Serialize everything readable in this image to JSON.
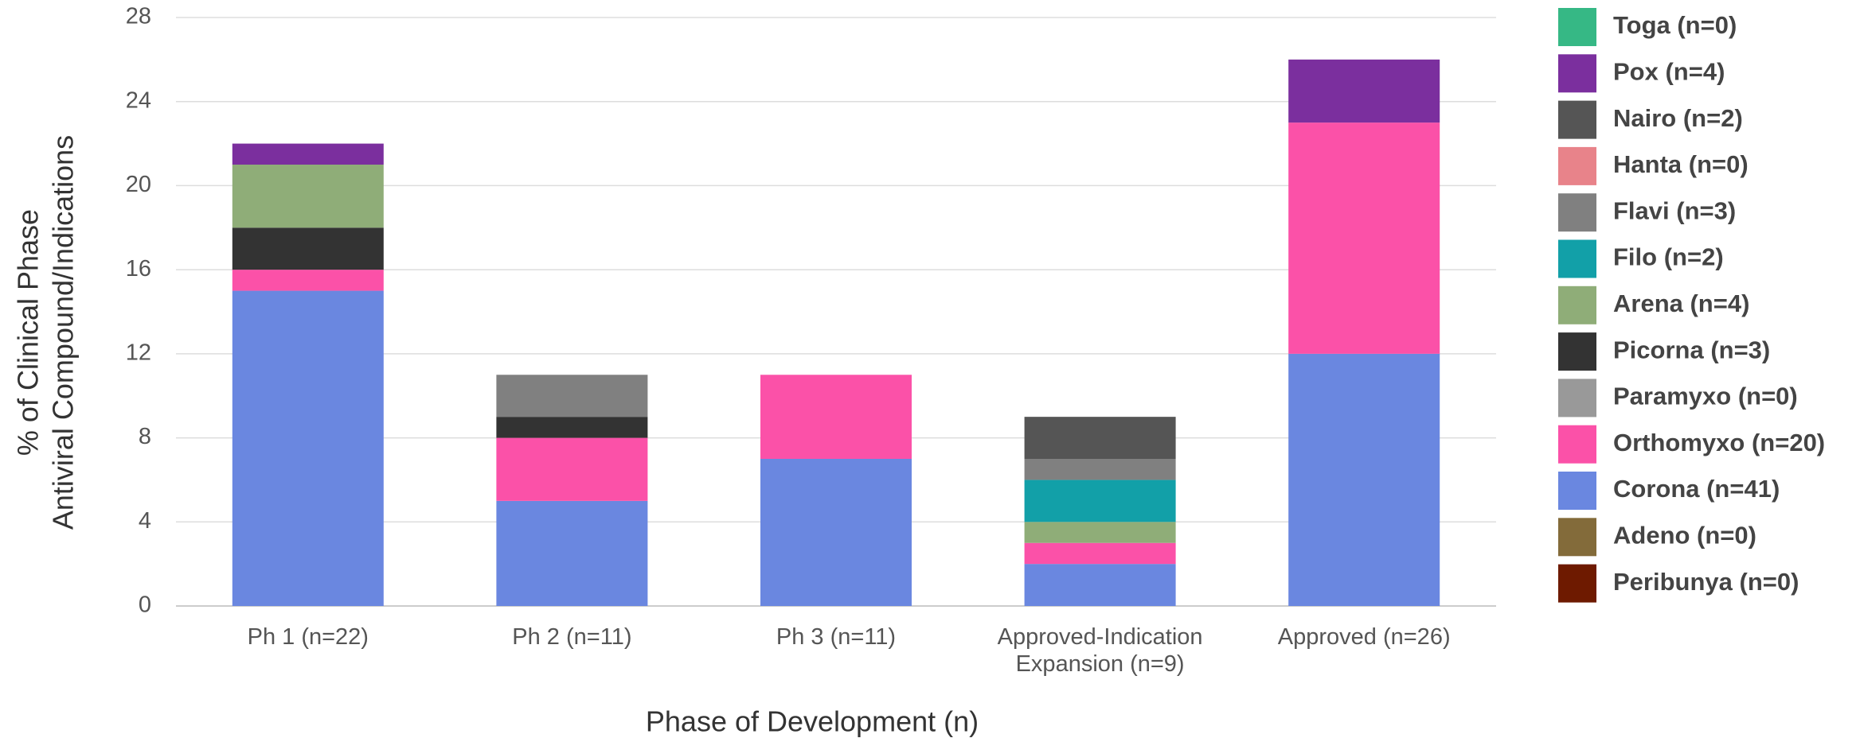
{
  "chart_data": {
    "type": "stacked_bar",
    "categories": [
      "Ph 1 (n=22)",
      "Ph 2 (n=11)",
      "Ph 3 (n=11)",
      "Approved-Indication Expansion (n=9)",
      "Approved (n=26)"
    ],
    "xlabel": "Phase of Development (n)",
    "ylabel": [
      "% of Clinical Phase",
      "Antiviral Compound/Indications"
    ],
    "ylim": [
      0,
      28
    ],
    "yticks": [
      0,
      4,
      8,
      12,
      16,
      20,
      24,
      28
    ],
    "grid": true,
    "series": [
      {
        "name": "Peribunya (n=0)",
        "color": "#6e1a00",
        "values": [
          0,
          0,
          0,
          0,
          0
        ]
      },
      {
        "name": "Adeno (n=0)",
        "color": "#836b3a",
        "values": [
          0,
          0,
          0,
          0,
          0
        ]
      },
      {
        "name": "Corona (n=41)",
        "color": "#6a87e0",
        "values": [
          15,
          5,
          7,
          2,
          12
        ]
      },
      {
        "name": "Orthomyxo (n=20)",
        "color": "#fb51a8",
        "values": [
          1,
          3,
          4,
          1,
          11
        ]
      },
      {
        "name": "Paramyxo (n=0)",
        "color": "#999999",
        "values": [
          0,
          0,
          0,
          0,
          0
        ]
      },
      {
        "name": "Picorna (n=3)",
        "color": "#333333",
        "values": [
          2,
          1,
          0,
          0,
          0
        ]
      },
      {
        "name": "Arena (n=4)",
        "color": "#8fad78",
        "values": [
          3,
          0,
          0,
          1,
          0
        ]
      },
      {
        "name": "Filo (n=2)",
        "color": "#12a0a8",
        "values": [
          0,
          0,
          0,
          2,
          0
        ]
      },
      {
        "name": "Flavi (n=3)",
        "color": "#808080",
        "values": [
          0,
          2,
          0,
          1,
          0
        ]
      },
      {
        "name": "Hanta (n=0)",
        "color": "#e8838a",
        "values": [
          0,
          0,
          0,
          0,
          0
        ]
      },
      {
        "name": "Nairo (n=2)",
        "color": "#555555",
        "values": [
          0,
          0,
          0,
          2,
          0
        ]
      },
      {
        "name": "Pox (n=4)",
        "color": "#7b2f9e",
        "values": [
          1,
          0,
          0,
          0,
          3
        ]
      },
      {
        "name": "Toga (n=0)",
        "color": "#36b885",
        "values": [
          0,
          0,
          0,
          0,
          0
        ]
      }
    ]
  }
}
